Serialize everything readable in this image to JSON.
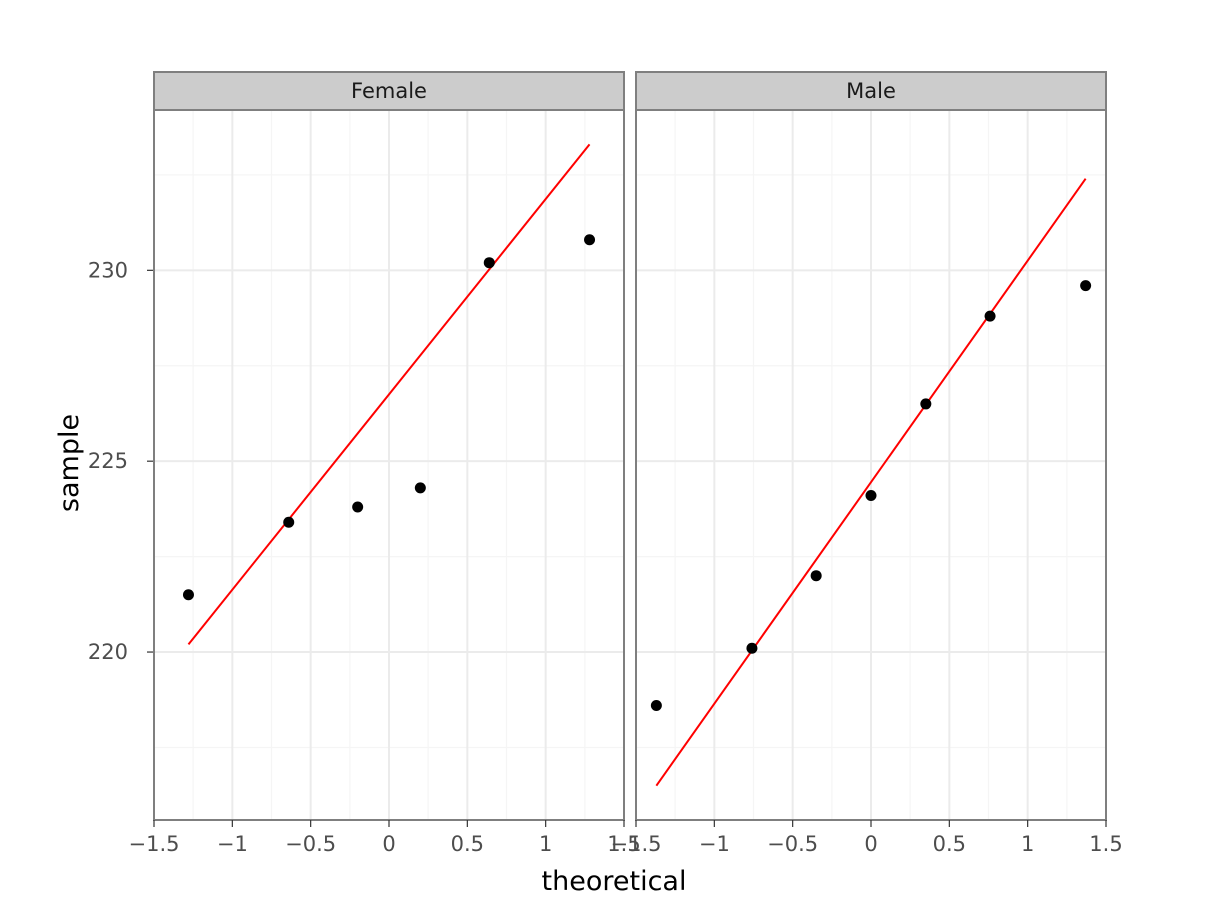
{
  "chart_data": {
    "type": "scatter",
    "subtype": "qq-plot",
    "xlabel": "theoretical",
    "ylabel": "sample",
    "xlim": [
      -1.5,
      1.5
    ],
    "ylim": [
      215.6,
      234.2
    ],
    "x_ticks": [
      -1.5,
      -1,
      -0.5,
      0,
      0.5,
      1,
      1.5
    ],
    "x_tick_labels": [
      "−1.5",
      "−1",
      "−0.5",
      "0",
      "0.5",
      "1",
      "1.5"
    ],
    "y_ticks": [
      220,
      225,
      230
    ],
    "y_tick_labels": [
      "220",
      "225",
      "230"
    ],
    "grid": true,
    "colors": {
      "points": "#000000",
      "reference_line": "#ff0000",
      "strip": "#cccccc",
      "panel_border": "#7f7f7f",
      "grid_major": "#ebebeb",
      "grid_minor": "#f5f5f5"
    },
    "panels": [
      {
        "label": "Female",
        "points": [
          {
            "x": -1.28,
            "y": 221.5
          },
          {
            "x": -0.64,
            "y": 223.4
          },
          {
            "x": -0.2,
            "y": 223.8
          },
          {
            "x": 0.2,
            "y": 224.3
          },
          {
            "x": 0.64,
            "y": 230.2
          },
          {
            "x": 1.28,
            "y": 230.8
          }
        ],
        "reference_line": [
          {
            "x": -1.28,
            "y": 220.2
          },
          {
            "x": 1.28,
            "y": 233.3
          }
        ]
      },
      {
        "label": "Male",
        "points": [
          {
            "x": -1.37,
            "y": 218.6
          },
          {
            "x": -0.76,
            "y": 220.1
          },
          {
            "x": -0.35,
            "y": 222.0
          },
          {
            "x": 0.0,
            "y": 224.1
          },
          {
            "x": 0.35,
            "y": 226.5
          },
          {
            "x": 0.76,
            "y": 228.8
          },
          {
            "x": 1.37,
            "y": 229.6
          }
        ],
        "reference_line": [
          {
            "x": -1.37,
            "y": 216.5
          },
          {
            "x": 1.37,
            "y": 232.4
          }
        ]
      }
    ]
  }
}
